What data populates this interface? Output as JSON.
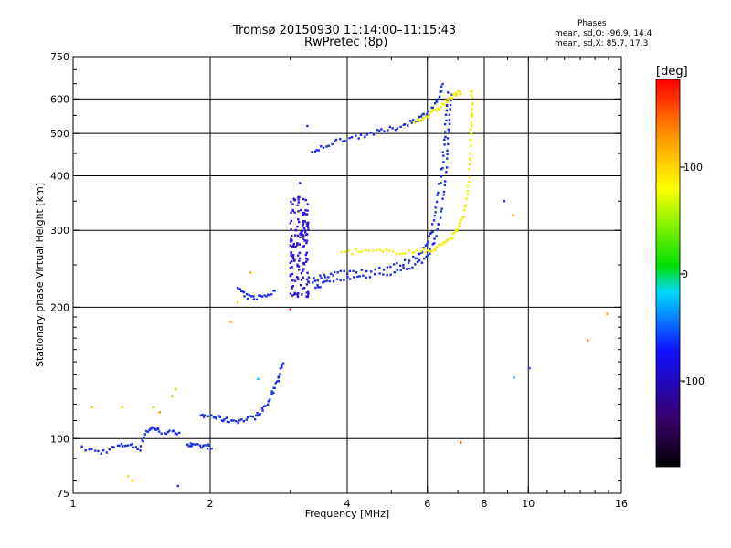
{
  "title": {
    "line1": "Tromsø 20150930 11:14:00–11:15:43",
    "line2": "RwPretec (8p)"
  },
  "phases": {
    "heading": "Phases",
    "line_o": "mean, sd,O: -96.9, 14.4",
    "line_x": "mean, sd,X: 85.7, 17.3"
  },
  "colorbar": {
    "title": "[deg]",
    "ticks": [
      "100",
      "0",
      "-100"
    ]
  },
  "chart_data": {
    "type": "scatter",
    "xlabel": "Frequency [MHz]",
    "ylabel": "Stationary phase Virtual Height [km]",
    "xscale": "log2",
    "yscale": "log",
    "xlim": [
      1,
      16
    ],
    "ylim": [
      75,
      750
    ],
    "xticks": [
      1,
      2,
      4,
      6,
      8,
      10,
      16
    ],
    "xtick_labels": [
      "1",
      "2",
      "4",
      "6",
      "8",
      "10",
      "16"
    ],
    "yticks": [
      75,
      100,
      200,
      300,
      400,
      500,
      600,
      750
    ],
    "ytick_labels": [
      "75",
      "100",
      "200",
      "300",
      "400",
      "500",
      "600",
      "750"
    ],
    "grid_x": [
      2,
      4,
      6,
      8,
      10
    ],
    "grid_y": [
      100,
      200,
      300,
      400,
      500,
      600
    ],
    "color_scale": {
      "min": -180,
      "max": 180,
      "stops": [
        "#000000",
        "#3a006a",
        "#1010ff",
        "#00d8ff",
        "#00e000",
        "#ffff00",
        "#ff9000",
        "#ff0000"
      ]
    },
    "series": [
      {
        "mode": "O",
        "phase": -100,
        "color": "#1a2fe0",
        "curves": [
          [
            [
              1.05,
              95
            ],
            [
              1.15,
              93
            ],
            [
              1.25,
              96
            ],
            [
              1.32,
              97
            ],
            [
              1.4,
              95
            ],
            [
              1.45,
              104
            ],
            [
              1.5,
              106
            ],
            [
              1.55,
              104
            ],
            [
              1.65,
              103
            ],
            [
              1.72,
              104
            ]
          ],
          [
            [
              1.78,
              97
            ],
            [
              1.85,
              96
            ],
            [
              1.95,
              96
            ],
            [
              2.02,
              96
            ]
          ],
          [
            [
              1.9,
              112
            ],
            [
              2.0,
              113
            ],
            [
              2.1,
              111
            ],
            [
              2.2,
              110
            ],
            [
              2.35,
              110
            ],
            [
              2.5,
              112
            ],
            [
              2.6,
              116
            ],
            [
              2.7,
              122
            ],
            [
              2.78,
              132
            ],
            [
              2.85,
              142
            ],
            [
              2.9,
              150
            ]
          ],
          [
            [
              2.3,
              222
            ],
            [
              2.38,
              212
            ],
            [
              2.5,
              210
            ],
            [
              2.65,
              213
            ],
            [
              2.8,
              218
            ]
          ],
          [
            [
              3.35,
              230
            ],
            [
              3.55,
              236
            ],
            [
              3.8,
              240
            ],
            [
              4.2,
              242
            ],
            [
              4.8,
              246
            ],
            [
              5.3,
              252
            ],
            [
              5.7,
              262
            ],
            [
              5.95,
              275
            ],
            [
              6.15,
              300
            ],
            [
              6.3,
              350
            ],
            [
              6.45,
              410
            ],
            [
              6.55,
              480
            ],
            [
              6.6,
              560
            ],
            [
              6.65,
              630
            ]
          ],
          [
            [
              3.4,
              222
            ],
            [
              3.6,
              228
            ],
            [
              4.0,
              233
            ],
            [
              4.4,
              236
            ],
            [
              5.0,
              240
            ],
            [
              5.5,
              247
            ],
            [
              5.9,
              257
            ],
            [
              6.2,
              280
            ],
            [
              6.4,
              320
            ],
            [
              6.55,
              380
            ],
            [
              6.65,
              460
            ],
            [
              6.72,
              540
            ],
            [
              6.78,
              620
            ]
          ],
          [
            [
              3.35,
              450
            ],
            [
              3.6,
              470
            ],
            [
              3.9,
              485
            ],
            [
              4.3,
              495
            ],
            [
              4.7,
              505
            ],
            [
              5.1,
              515
            ],
            [
              5.5,
              530
            ],
            [
              5.8,
              545
            ],
            [
              6.1,
              565
            ],
            [
              6.35,
              600
            ],
            [
              6.5,
              650
            ]
          ]
        ]
      },
      {
        "mode": "O spread",
        "phase": -115,
        "color": "#2a1ad8",
        "clusters": [
          [
            3.0,
            3.3,
            210,
            360
          ]
        ]
      },
      {
        "mode": "X",
        "phase": 85,
        "color": "#f2ee00",
        "curves": [
          [
            [
              3.9,
              268
            ],
            [
              4.3,
              268
            ],
            [
              4.8,
              268
            ],
            [
              5.3,
              268
            ],
            [
              5.8,
              268
            ],
            [
              6.2,
              272
            ],
            [
              6.5,
              280
            ],
            [
              6.8,
              290
            ],
            [
              7.05,
              305
            ],
            [
              7.25,
              330
            ],
            [
              7.38,
              380
            ],
            [
              7.45,
              440
            ],
            [
              7.5,
              520
            ],
            [
              7.52,
              580
            ],
            [
              7.5,
              640
            ]
          ],
          [
            [
              5.6,
              530
            ],
            [
              5.9,
              545
            ],
            [
              6.2,
              560
            ],
            [
              6.45,
              580
            ],
            [
              6.7,
              600
            ],
            [
              6.95,
              615
            ],
            [
              7.15,
              625
            ]
          ]
        ]
      },
      {
        "mode": "isolated",
        "phase": null,
        "color": null,
        "points": [
          [
            1.1,
            118,
            "#f0d000"
          ],
          [
            1.28,
            118,
            "#f0d000"
          ],
          [
            1.35,
            80,
            "#f0d000"
          ],
          [
            1.32,
            82,
            "#e8d800"
          ],
          [
            1.55,
            115,
            "#ff8c00"
          ],
          [
            1.5,
            118,
            "#e8d800"
          ],
          [
            1.68,
            130,
            "#e8d800"
          ],
          [
            1.65,
            125,
            "#e8d800"
          ],
          [
            2.22,
            185,
            "#ffb000"
          ],
          [
            2.3,
            205,
            "#f0d000"
          ],
          [
            2.45,
            240,
            "#ffb000"
          ],
          [
            2.55,
            137,
            "#00c0ff"
          ],
          [
            3.0,
            198,
            "#ff4040"
          ],
          [
            3.27,
            520,
            "#1a2fe0"
          ],
          [
            3.15,
            385,
            "#1a2fe0"
          ],
          [
            7.1,
            98,
            "#ff4000"
          ],
          [
            8.85,
            350,
            "#1a2fe0"
          ],
          [
            9.25,
            325,
            "#ffb000"
          ],
          [
            9.3,
            138,
            "#1a8fff"
          ],
          [
            10.05,
            145,
            "#1a2fe0"
          ],
          [
            13.5,
            168,
            "#ff6a00"
          ],
          [
            14.9,
            193,
            "#ffb000"
          ],
          [
            1.7,
            78,
            "#1a2fe0"
          ]
        ]
      }
    ]
  }
}
